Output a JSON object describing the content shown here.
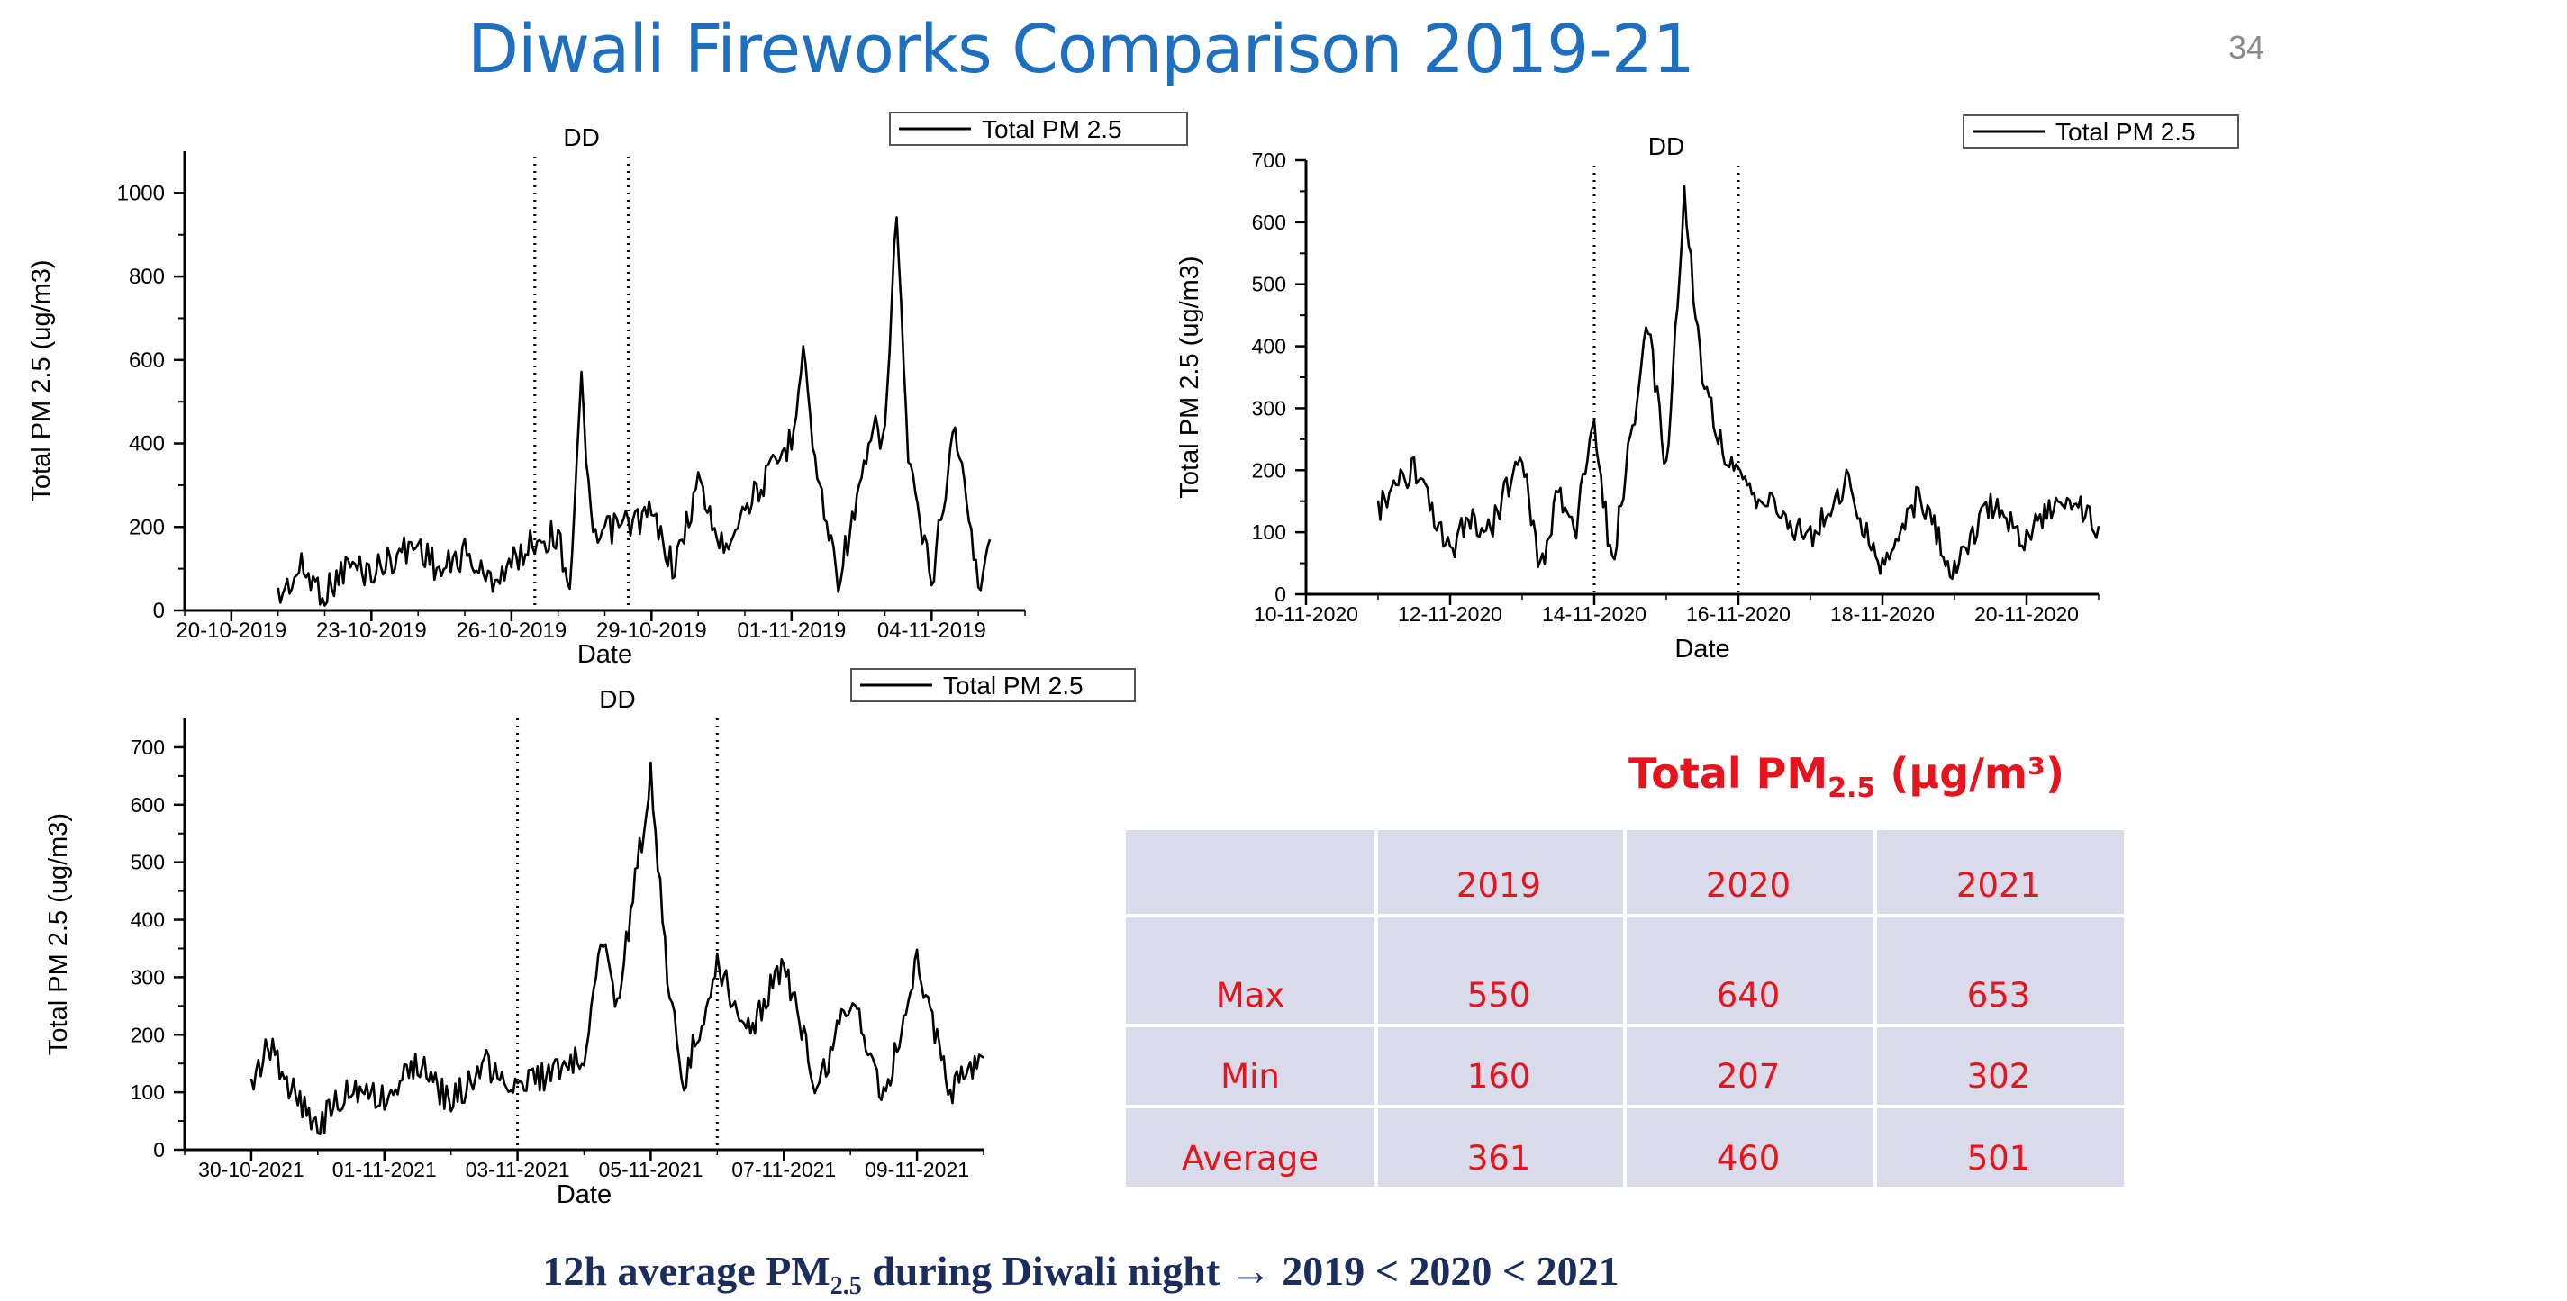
{
  "slide": {
    "title": "Diwali Fireworks Comparison 2019-21",
    "page_number": "34",
    "footer": {
      "prefix": "12h average PM",
      "sub": "2.5",
      "suffix": " during Diwali night → 2019 < 2020 < 2021"
    }
  },
  "chart_data": [
    {
      "type": "line",
      "title": "",
      "xlabel": "Date",
      "ylabel": "Total PM 2.5 (ug/m3)",
      "legend": "Total PM 2.5",
      "legend_position": "top-right",
      "marker_label": "DD",
      "marker_lines_x": [
        "26-10-2019 12:00",
        "28-10-2019 12:00"
      ],
      "x_ticks": [
        "20-10-2019",
        "23-10-2019",
        "26-10-2019",
        "29-10-2019",
        "01-11-2019",
        "04-11-2019"
      ],
      "xlim": [
        "19-10-2019",
        "06-11-2019"
      ],
      "y_ticks": [
        0,
        200,
        400,
        600,
        800,
        1000
      ],
      "ylim": [
        0,
        1100
      ],
      "series": [
        {
          "x": [
            "21-10-2019 00:00",
            "21-10-2019 12:00",
            "22-10-2019 00:00",
            "22-10-2019 12:00",
            "23-10-2019 00:00",
            "23-10-2019 12:00",
            "24-10-2019 00:00",
            "24-10-2019 12:00",
            "25-10-2019 00:00",
            "25-10-2019 12:00",
            "26-10-2019 00:00",
            "26-10-2019 12:00",
            "27-10-2019 00:00",
            "27-10-2019 06:00",
            "27-10-2019 12:00",
            "27-10-2019 18:00",
            "28-10-2019 00:00",
            "28-10-2019 12:00",
            "29-10-2019 00:00",
            "29-10-2019 12:00",
            "30-10-2019 00:00",
            "30-10-2019 12:00",
            "31-10-2019 00:00",
            "31-10-2019 12:00",
            "01-11-2019 00:00",
            "01-11-2019 06:00",
            "01-11-2019 12:00",
            "02-11-2019 00:00",
            "02-11-2019 12:00",
            "02-11-2019 18:00",
            "03-11-2019 00:00",
            "03-11-2019 06:00",
            "03-11-2019 12:00",
            "04-11-2019 00:00",
            "04-11-2019 12:00",
            "05-11-2019 00:00",
            "05-11-2019 06:00"
          ],
          "y": [
            30,
            100,
            40,
            110,
            90,
            130,
            160,
            90,
            140,
            70,
            110,
            170,
            180,
            60,
            540,
            150,
            190,
            210,
            230,
            100,
            310,
            150,
            250,
            320,
            410,
            640,
            350,
            80,
            300,
            430,
            420,
            960,
            350,
            70,
            450,
            60,
            170
          ]
        }
      ]
    },
    {
      "type": "line",
      "title": "",
      "xlabel": "Date",
      "ylabel": "Total PM 2.5 (ug/m3)",
      "legend": "Total PM 2.5",
      "legend_position": "top-right",
      "marker_label": "DD",
      "marker_lines_x": [
        "14-11-2020 00:00",
        "16-11-2020 00:00"
      ],
      "x_ticks": [
        "10-11-2020",
        "12-11-2020",
        "14-11-2020",
        "16-11-2020",
        "18-11-2020",
        "20-11-2020"
      ],
      "xlim": [
        "10-11-2020",
        "21-11-2020"
      ],
      "y_ticks": [
        0,
        100,
        200,
        300,
        400,
        500,
        600,
        700
      ],
      "ylim": [
        0,
        700
      ],
      "series": [
        {
          "x": [
            "11-11-2020 00:00",
            "11-11-2020 12:00",
            "12-11-2020 00:00",
            "12-11-2020 06:00",
            "12-11-2020 12:00",
            "13-11-2020 00:00",
            "13-11-2020 06:00",
            "13-11-2020 12:00",
            "13-11-2020 18:00",
            "14-11-2020 00:00",
            "14-11-2020 06:00",
            "14-11-2020 12:00",
            "14-11-2020 18:00",
            "15-11-2020 00:00",
            "15-11-2020 06:00",
            "15-11-2020 12:00",
            "15-11-2020 18:00",
            "16-11-2020 00:00",
            "16-11-2020 12:00",
            "17-11-2020 00:00",
            "17-11-2020 12:00",
            "18-11-2020 00:00",
            "18-11-2020 12:00",
            "19-11-2020 00:00",
            "19-11-2020 12:00",
            "20-11-2020 00:00",
            "20-11-2020 12:00",
            "21-11-2020 00:00"
          ],
          "y": [
            140,
            200,
            60,
            130,
            90,
            230,
            40,
            160,
            110,
            280,
            40,
            250,
            430,
            200,
            640,
            350,
            250,
            180,
            140,
            90,
            180,
            40,
            160,
            30,
            150,
            90,
            160,
            110
          ]
        }
      ]
    },
    {
      "type": "line",
      "title": "",
      "xlabel": "Date",
      "ylabel": "Total PM 2.5 (ug/m3)",
      "legend": "Total PM 2.5",
      "legend_position": "top-right",
      "marker_label": "DD",
      "marker_lines_x": [
        "03-11-2021 00:00",
        "06-11-2021 00:00"
      ],
      "x_ticks": [
        "30-10-2021",
        "01-11-2021",
        "03-11-2021",
        "05-11-2021",
        "07-11-2021",
        "09-11-2021"
      ],
      "xlim": [
        "29-10-2021",
        "10-11-2021"
      ],
      "y_ticks": [
        0,
        100,
        200,
        300,
        400,
        500,
        600,
        700
      ],
      "ylim": [
        0,
        750
      ],
      "series": [
        {
          "x": [
            "30-10-2021 00:00",
            "30-10-2021 06:00",
            "30-10-2021 12:00",
            "31-10-2021 00:00",
            "31-10-2021 12:00",
            "01-11-2021 00:00",
            "01-11-2021 12:00",
            "02-11-2021 00:00",
            "02-11-2021 12:00",
            "03-11-2021 00:00",
            "03-11-2021 12:00",
            "04-11-2021 00:00",
            "04-11-2021 06:00",
            "04-11-2021 12:00",
            "05-11-2021 00:00",
            "05-11-2021 06:00",
            "05-11-2021 12:00",
            "06-11-2021 00:00",
            "06-11-2021 12:00",
            "07-11-2021 00:00",
            "07-11-2021 12:00",
            "08-11-2021 00:00",
            "08-11-2021 12:00",
            "09-11-2021 00:00",
            "09-11-2021 12:00",
            "10-11-2021 00:00"
          ],
          "y": [
            100,
            190,
            120,
            40,
            110,
            90,
            150,
            80,
            150,
            110,
            130,
            170,
            380,
            250,
            650,
            300,
            120,
            320,
            200,
            330,
            100,
            270,
            90,
            330,
            100,
            160
          ]
        }
      ]
    },
    {
      "type": "table",
      "title": "Total PM",
      "title_sub": "2.5",
      "title_unit": " (µg/m³)",
      "columns": [
        "",
        "2019",
        "2020",
        "2021"
      ],
      "rows": [
        {
          "label": "Max",
          "values": [
            "550",
            "640",
            "653"
          ]
        },
        {
          "label": "Min",
          "values": [
            "160",
            "207",
            "302"
          ]
        },
        {
          "label": "Average",
          "values": [
            "361",
            "460",
            "501"
          ]
        }
      ]
    }
  ]
}
